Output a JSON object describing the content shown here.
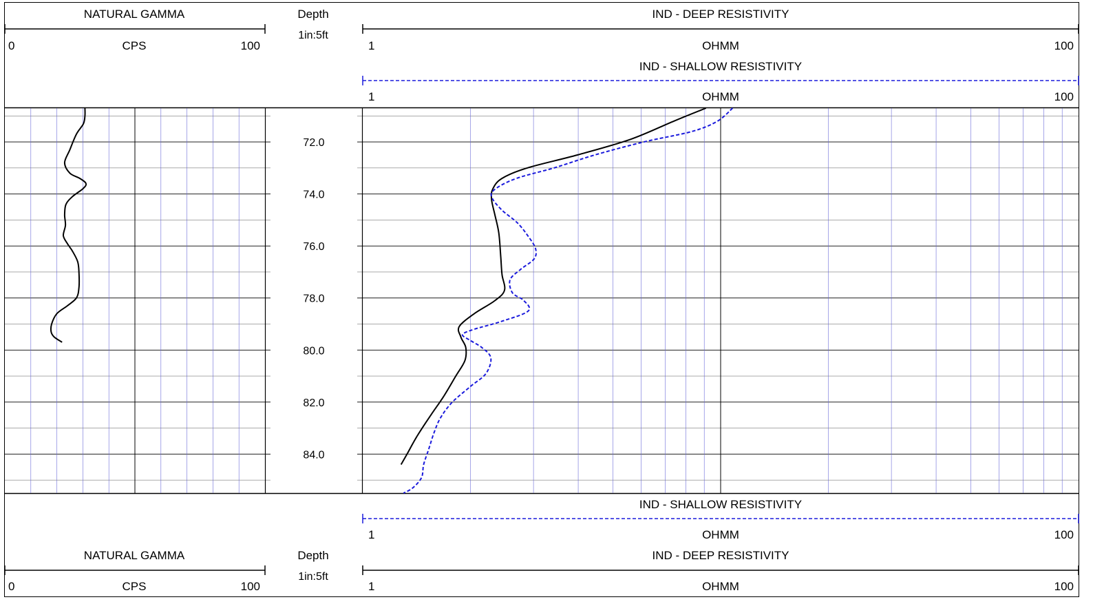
{
  "header": {
    "gamma": {
      "title": "NATURAL GAMMA",
      "unit": "CPS",
      "min": "0",
      "max": "100"
    },
    "depth": {
      "title": "Depth",
      "scale": "1in:5ft"
    },
    "deep": {
      "title": "IND - DEEP RESISTIVITY",
      "unit": "OHMM",
      "min": "1",
      "max": "100"
    },
    "shallow": {
      "title": "IND - SHALLOW RESISTIVITY",
      "unit": "OHMM",
      "min": "1",
      "max": "100"
    }
  },
  "footer": {
    "shallow": {
      "title": "IND - SHALLOW RESISTIVITY",
      "unit": "OHMM",
      "min": "1",
      "max": "100"
    },
    "gamma": {
      "title": "NATURAL GAMMA",
      "unit": "CPS",
      "min": "0",
      "max": "100"
    },
    "depth": {
      "title": "Depth",
      "scale": "1in:5ft"
    },
    "deep": {
      "title": "IND - DEEP RESISTIVITY",
      "unit": "OHMM",
      "min": "1",
      "max": "100"
    }
  },
  "chart_data": {
    "type": "line",
    "depth_range": [
      70.7,
      85.5
    ],
    "depth_ticks": [
      72,
      74,
      76,
      78,
      80,
      82,
      84
    ],
    "depth_tick_labels": [
      "72.0",
      "74.0",
      "76.0",
      "78.0",
      "80.0",
      "82.0",
      "84.0"
    ],
    "gamma_range": [
      0,
      100
    ],
    "resistivity_range": [
      1,
      100
    ],
    "resistivity_scale": "log",
    "series": [
      {
        "track": "gamma",
        "color": "#000000",
        "dash": "solid",
        "points": [
          [
            30.8,
            70.7
          ],
          [
            30.8,
            71.0
          ],
          [
            30.2,
            71.3
          ],
          [
            27.5,
            71.7
          ],
          [
            25.0,
            72.3
          ],
          [
            23.0,
            72.8
          ],
          [
            25.0,
            73.2
          ],
          [
            28.8,
            73.4
          ],
          [
            31.2,
            73.6
          ],
          [
            30.0,
            73.8
          ],
          [
            26.0,
            74.1
          ],
          [
            23.5,
            74.4
          ],
          [
            23.0,
            74.8
          ],
          [
            23.3,
            75.2
          ],
          [
            22.5,
            75.6
          ],
          [
            24.0,
            75.9
          ],
          [
            26.0,
            76.2
          ],
          [
            28.0,
            76.6
          ],
          [
            28.5,
            77.0
          ],
          [
            28.5,
            77.6
          ],
          [
            27.5,
            78.0
          ],
          [
            24.0,
            78.3
          ],
          [
            20.0,
            78.6
          ],
          [
            18.0,
            79.0
          ],
          [
            17.8,
            79.3
          ],
          [
            19.0,
            79.5
          ],
          [
            22.0,
            79.7
          ]
        ]
      },
      {
        "track": "resistivity",
        "name": "IND - DEEP RESISTIVITY",
        "color": "#000000",
        "dash": "solid",
        "points": [
          [
            9.1,
            70.7
          ],
          [
            7.4,
            71.2
          ],
          [
            5.6,
            71.9
          ],
          [
            3.98,
            72.5
          ],
          [
            2.88,
            73.0
          ],
          [
            2.45,
            73.4
          ],
          [
            2.31,
            73.8
          ],
          [
            2.29,
            74.2
          ],
          [
            2.34,
            74.8
          ],
          [
            2.4,
            75.5
          ],
          [
            2.43,
            76.4
          ],
          [
            2.45,
            77.1
          ],
          [
            2.49,
            77.7
          ],
          [
            2.34,
            78.1
          ],
          [
            2.05,
            78.6
          ],
          [
            1.86,
            79.1
          ],
          [
            1.88,
            79.5
          ],
          [
            1.94,
            79.9
          ],
          [
            1.93,
            80.4
          ],
          [
            1.82,
            81.0
          ],
          [
            1.68,
            81.8
          ],
          [
            1.55,
            82.5
          ],
          [
            1.42,
            83.3
          ],
          [
            1.33,
            84.0
          ],
          [
            1.28,
            84.4
          ]
        ]
      },
      {
        "track": "resistivity",
        "name": "IND - SHALLOW RESISTIVITY",
        "color": "#1a1adc",
        "dash": "dashed",
        "points": [
          [
            10.8,
            70.7
          ],
          [
            9.8,
            71.2
          ],
          [
            8.3,
            71.6
          ],
          [
            6.1,
            72.0
          ],
          [
            4.45,
            72.5
          ],
          [
            3.42,
            73.0
          ],
          [
            2.69,
            73.4
          ],
          [
            2.35,
            73.8
          ],
          [
            2.29,
            74.1
          ],
          [
            2.44,
            74.6
          ],
          [
            2.7,
            75.1
          ],
          [
            2.89,
            75.6
          ],
          [
            3.04,
            76.1
          ],
          [
            3.01,
            76.5
          ],
          [
            2.76,
            76.9
          ],
          [
            2.58,
            77.3
          ],
          [
            2.62,
            77.8
          ],
          [
            2.82,
            78.1
          ],
          [
            2.9,
            78.5
          ],
          [
            2.44,
            78.9
          ],
          [
            2.05,
            79.2
          ],
          [
            1.9,
            79.4
          ],
          [
            1.98,
            79.6
          ],
          [
            2.15,
            79.9
          ],
          [
            2.28,
            80.3
          ],
          [
            2.21,
            80.9
          ],
          [
            2.0,
            81.4
          ],
          [
            1.78,
            82.0
          ],
          [
            1.65,
            82.6
          ],
          [
            1.58,
            83.2
          ],
          [
            1.53,
            83.8
          ],
          [
            1.48,
            84.4
          ],
          [
            1.46,
            84.9
          ],
          [
            1.38,
            85.3
          ],
          [
            1.3,
            85.5
          ]
        ]
      }
    ]
  }
}
